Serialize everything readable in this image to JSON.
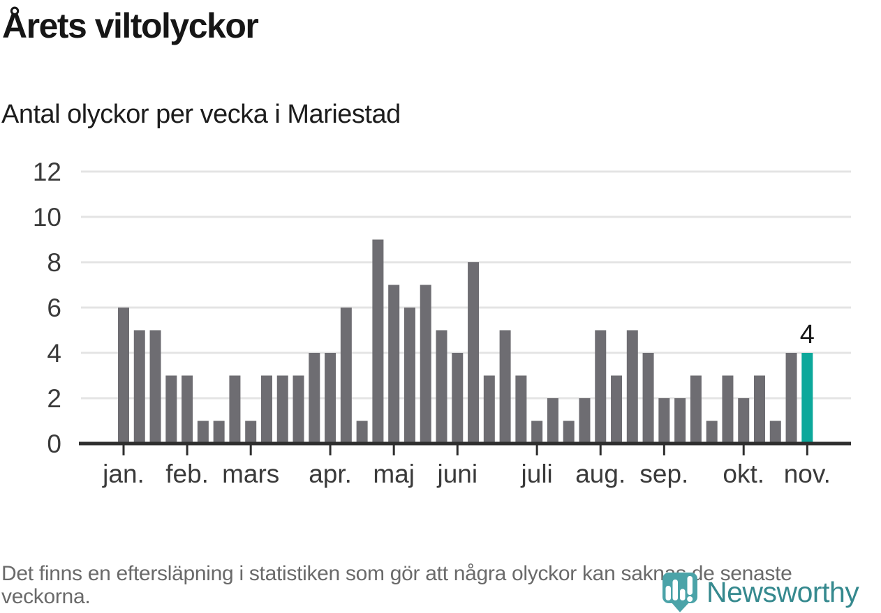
{
  "header": {
    "title": "Årets viltolyckor",
    "subtitle": "Antal olyckor per vecka i Mariestad"
  },
  "chart_data": {
    "type": "bar",
    "title": "Årets viltolyckor",
    "subtitle": "Antal olyckor per vecka i Mariestad",
    "ylabel": "",
    "xlabel": "",
    "ylim": [
      0,
      12
    ],
    "y_ticks": [
      0,
      2,
      4,
      6,
      8,
      10,
      12
    ],
    "grid": "horizontal",
    "categories_unit": "vecka",
    "values": [
      6,
      5,
      5,
      3,
      3,
      1,
      1,
      3,
      1,
      3,
      3,
      3,
      4,
      4,
      6,
      1,
      9,
      7,
      6,
      7,
      5,
      4,
      8,
      3,
      5,
      3,
      1,
      2,
      1,
      2,
      5,
      3,
      5,
      4,
      2,
      2,
      3,
      1,
      3,
      2,
      3,
      1,
      4,
      4
    ],
    "highlight_index": 43,
    "highlight_label": "4",
    "month_ticks": [
      {
        "label": "jan.",
        "week": 1
      },
      {
        "label": "feb.",
        "week": 5
      },
      {
        "label": "mars",
        "week": 9
      },
      {
        "label": "apr.",
        "week": 14
      },
      {
        "label": "maj",
        "week": 18
      },
      {
        "label": "juni",
        "week": 22
      },
      {
        "label": "juli",
        "week": 27
      },
      {
        "label": "aug.",
        "week": 31
      },
      {
        "label": "sep.",
        "week": 35
      },
      {
        "label": "okt.",
        "week": 40
      },
      {
        "label": "nov.",
        "week": 44
      }
    ],
    "colors": {
      "bar": "#6e6d72",
      "highlight": "#0ca89b",
      "grid": "#e4e4e4",
      "axis": "#2e2e2e",
      "tick_label": "#3a3a3a",
      "annotation": "#1a1a1a"
    }
  },
  "footer": {
    "note": "Det finns en eftersläpning i statistiken som gör att några olyckor kan saknas de senaste veckorna."
  },
  "logo": {
    "name": "Newsworthy",
    "wordmark_color": "#35898e",
    "icon_color": "#4ba3a8",
    "icon_bar_color": "#ffffff"
  }
}
